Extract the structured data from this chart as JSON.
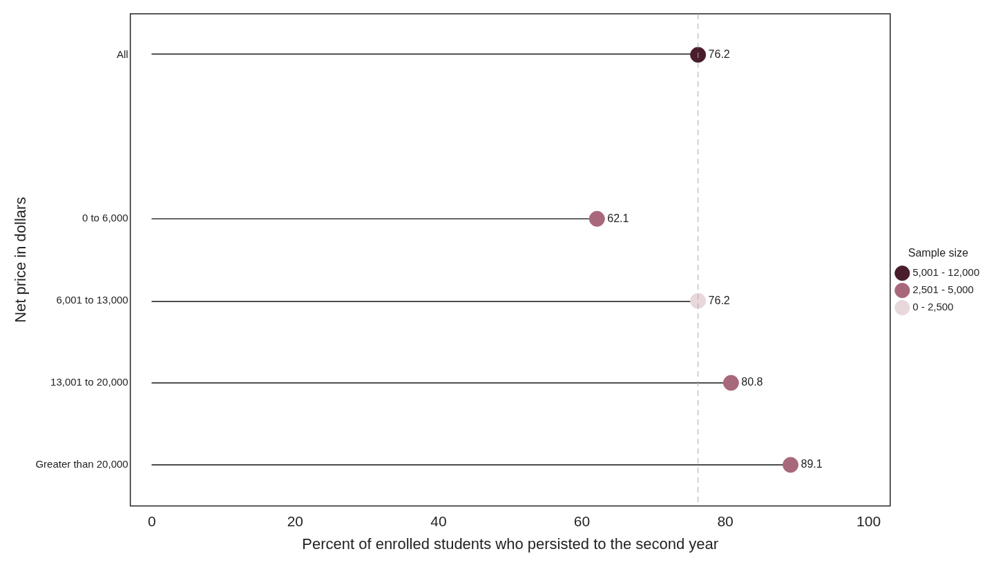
{
  "chart_data": {
    "type": "lollipop",
    "orientation": "horizontal",
    "xlabel": "Percent of enrolled students who persisted to the second year",
    "ylabel": "Net price in dollars",
    "legend_title": "Sample size",
    "legend": "right",
    "marker": "circle",
    "data_labels": true,
    "grid": false,
    "categories": [
      "All",
      null,
      "0 to 6,000",
      "6,001 to 13,000",
      "13,001 to 20,000",
      "Greater than 20,000"
    ],
    "xlim": [
      -3,
      103
    ],
    "xticks": [
      0,
      20,
      40,
      60,
      80,
      100
    ],
    "series": [
      {
        "name": "5,001 - 12,000",
        "color": "#4a1d2c",
        "values": [
          76.2,
          null,
          null,
          null,
          null,
          null
        ]
      },
      {
        "name": "2,501 - 5,000",
        "color": "#a8687b",
        "values": [
          null,
          null,
          62.1,
          null,
          80.8,
          89.1
        ]
      },
      {
        "name": "0 - 2,500",
        "color": "#e8d8dc",
        "values": [
          null,
          null,
          null,
          76.2,
          null,
          null
        ]
      }
    ],
    "ref_lines": [
      {
        "axis": "x",
        "value": 76.2,
        "color": "#aaaaaa",
        "line_style": "dashed"
      }
    ]
  }
}
